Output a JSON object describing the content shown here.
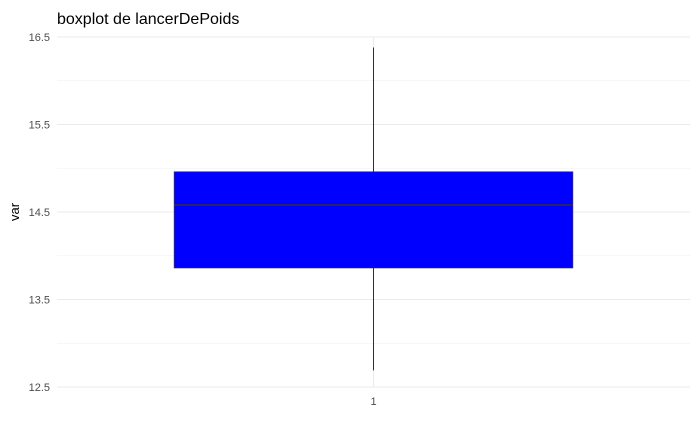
{
  "chart_data": {
    "type": "boxplot",
    "title": "boxplot de lancerDePoids",
    "xlabel": "",
    "ylabel": "var",
    "categories": [
      "1"
    ],
    "ylim": [
      12.5,
      16.5
    ],
    "yticks": [
      "12.5",
      "13.5",
      "14.5",
      "15.5",
      "16.5"
    ],
    "grid": true,
    "legend": "none",
    "box_color": "#0000ff",
    "median_color": "#333333",
    "whisker_color": "#000000",
    "boxes": [
      {
        "category": "1",
        "whisker_low": 12.69,
        "q1": 13.86,
        "median": 14.58,
        "q3": 14.96,
        "whisker_high": 16.38
      }
    ]
  }
}
